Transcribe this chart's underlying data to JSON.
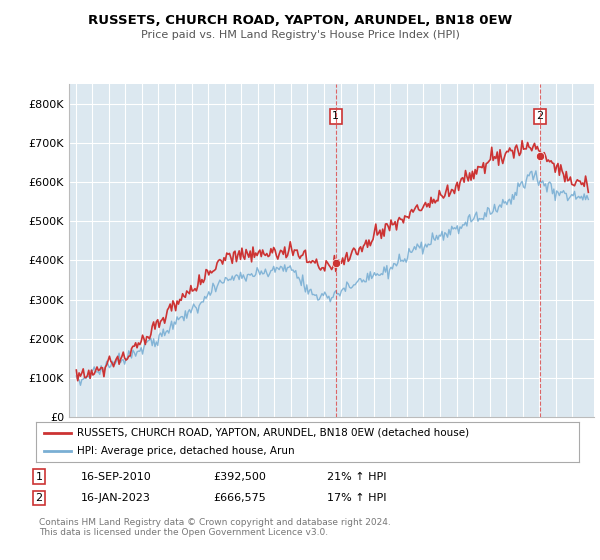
{
  "title": "RUSSETS, CHURCH ROAD, YAPTON, ARUNDEL, BN18 0EW",
  "subtitle": "Price paid vs. HM Land Registry's House Price Index (HPI)",
  "ylim": [
    0,
    850000
  ],
  "yticks": [
    0,
    100000,
    200000,
    300000,
    400000,
    500000,
    600000,
    700000,
    800000
  ],
  "ytick_labels": [
    "£0",
    "£100K",
    "£200K",
    "£300K",
    "£400K",
    "£500K",
    "£600K",
    "£700K",
    "£800K"
  ],
  "hpi_color": "#7aafd4",
  "price_color": "#cc3333",
  "grid_color": "#c8d8e8",
  "plot_bg_color": "#dce8f0",
  "transaction1_date": "16-SEP-2010",
  "transaction1_price": 392500,
  "transaction1_pct": "21%",
  "transaction2_date": "16-JAN-2023",
  "transaction2_price": 666575,
  "transaction2_pct": "17%",
  "legend_label1": "RUSSETS, CHURCH ROAD, YAPTON, ARUNDEL, BN18 0EW (detached house)",
  "legend_label2": "HPI: Average price, detached house, Arun",
  "footer": "Contains HM Land Registry data © Crown copyright and database right 2024.\nThis data is licensed under the Open Government Licence v3.0.",
  "vline_color": "#dd4444"
}
